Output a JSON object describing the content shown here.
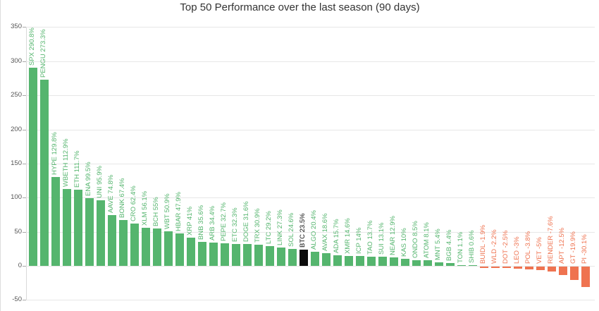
{
  "chart_data": {
    "type": "bar",
    "title": "Top 50 Performance over the last season (90 days)",
    "xlabel": "",
    "ylabel": "",
    "ylim": [
      -50,
      350
    ],
    "yticks": [
      350,
      300,
      250,
      200,
      150,
      100,
      50,
      0,
      -50
    ],
    "grid": true,
    "legend": "none",
    "highlight_category": "BTC",
    "categories": [
      "SPX",
      "PENGU",
      "HYPE",
      "WBETH",
      "ETH",
      "ENA",
      "UNI",
      "AAVE",
      "BONK",
      "CRO",
      "XLM",
      "BCH",
      "WBT",
      "HBAR",
      "XRP",
      "BNB",
      "ARB",
      "PEPE",
      "ETC",
      "DOGE",
      "TRX",
      "LTC",
      "LINK",
      "SOL",
      "BTC",
      "ALGO",
      "AVAX",
      "ADA",
      "XMR",
      "ICP",
      "TAO",
      "SUI",
      "NEAR",
      "KAS",
      "ONDO",
      "ATOM",
      "MNT",
      "BGB",
      "TON",
      "SHIB",
      "BUIDL",
      "WLD",
      "DOT",
      "LEO",
      "POL",
      "VET",
      "RENDER",
      "APT",
      "GT",
      "PI"
    ],
    "values": [
      290.8,
      273.3,
      129.8,
      112.9,
      111.7,
      99.5,
      95.9,
      74.8,
      67.4,
      62.4,
      56.1,
      55,
      50.9,
      47.9,
      41,
      35.6,
      34.4,
      32.7,
      32.3,
      31.6,
      30.9,
      29.2,
      27.3,
      24.6,
      23.5,
      20.4,
      18.6,
      15.7,
      14.6,
      14,
      13.7,
      13.1,
      12.9,
      10,
      8.5,
      8.1,
      5.4,
      4.4,
      1.1,
      0.6,
      -1.9,
      -2.2,
      -2.5,
      -3,
      -3.8,
      -5,
      -7.6,
      -12.5,
      -19.9,
      -30.1
    ],
    "bar_labels": [
      "SPX 290.8%",
      "PENGU 273.3%",
      "HYPE 129.8%",
      "WBETH 112.9%",
      "ETH 111.7%",
      "ENA 99.5%",
      "UNI 95.9%",
      "AAVE 74.8%",
      "BONK 67.4%",
      "CRO 62.4%",
      "XLM 56.1%",
      "BCH 55%",
      "WBT 50.9%",
      "HBAR 47.9%",
      "XRP 41%",
      "BNB 35.6%",
      "ARB 34.4%",
      "PEPE 32.7%",
      "ETC 32.3%",
      "DOGE 31.6%",
      "TRX 30.9%",
      "LTC 29.2%",
      "LINK 27.3%",
      "SOL 24.6%",
      "BTC 23.5%",
      "ALGO 20.4%",
      "AVAX 18.6%",
      "ADA 15.7%",
      "XMR 14.6%",
      "ICP 14%",
      "TAO 13.7%",
      "SUI 13.1%",
      "NEAR 12.9%",
      "KAS 10%",
      "ONDO 8.5%",
      "ATOM 8.1%",
      "MNT 5.4%",
      "BGB 4.4%",
      "TON 1.1%",
      "SHIB 0.6%",
      "BUIDL -1.9%",
      "WLD -2.2%",
      "DOT -2.5%",
      "LEO -3%",
      "POL -3.8%",
      "VET -5%",
      "RENDER -7.6%",
      "APT -12.5%",
      "GT -19.9%",
      "PI -30.1%"
    ],
    "colors": {
      "positive": "#55b56e",
      "negative": "#ef7350",
      "highlight": "#0b0b0b",
      "grid": "#e7e7e7",
      "axis": "#d9d9d9",
      "tick": "#a9a9a9",
      "tick_label": "#555555",
      "title": "#333333"
    }
  }
}
